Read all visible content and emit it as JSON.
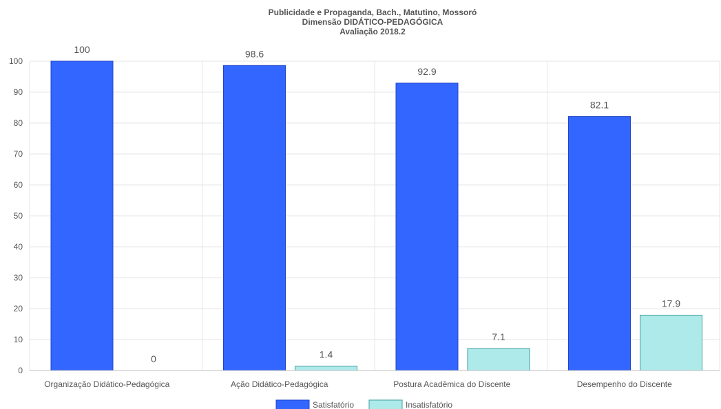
{
  "chart_data": {
    "type": "bar",
    "title_lines": [
      "Publicidade e Propaganda, Bach., Matutino, Mossoró",
      "Dimensão DIDÁTICO-PEDAGÓGICA",
      "Avaliação 2018.2"
    ],
    "categories": [
      "Organização Didático-Pedagógica",
      "Ação Didático-Pedagógica",
      "Postura Acadêmica do Discente",
      "Desempenho do Discente"
    ],
    "series": [
      {
        "name": "Satisfatório",
        "values": [
          100,
          98.6,
          92.9,
          82.1
        ],
        "color": "#3366ff",
        "border": "#1f45c8"
      },
      {
        "name": "Insatisfatório",
        "values": [
          0,
          1.4,
          7.1,
          17.9
        ],
        "color": "#aeeaea",
        "border": "#3f9e9e"
      }
    ],
    "data_labels": [
      [
        "100",
        "98.6",
        "92.9",
        "82.1"
      ],
      [
        "0",
        "1.4",
        "7.1",
        "17.9"
      ]
    ],
    "y_ticks": [
      "0",
      "10",
      "20",
      "30",
      "40",
      "50",
      "60",
      "70",
      "80",
      "90",
      "100"
    ],
    "ylim": [
      0,
      100
    ],
    "grid": true,
    "legend_position": "bottom"
  }
}
